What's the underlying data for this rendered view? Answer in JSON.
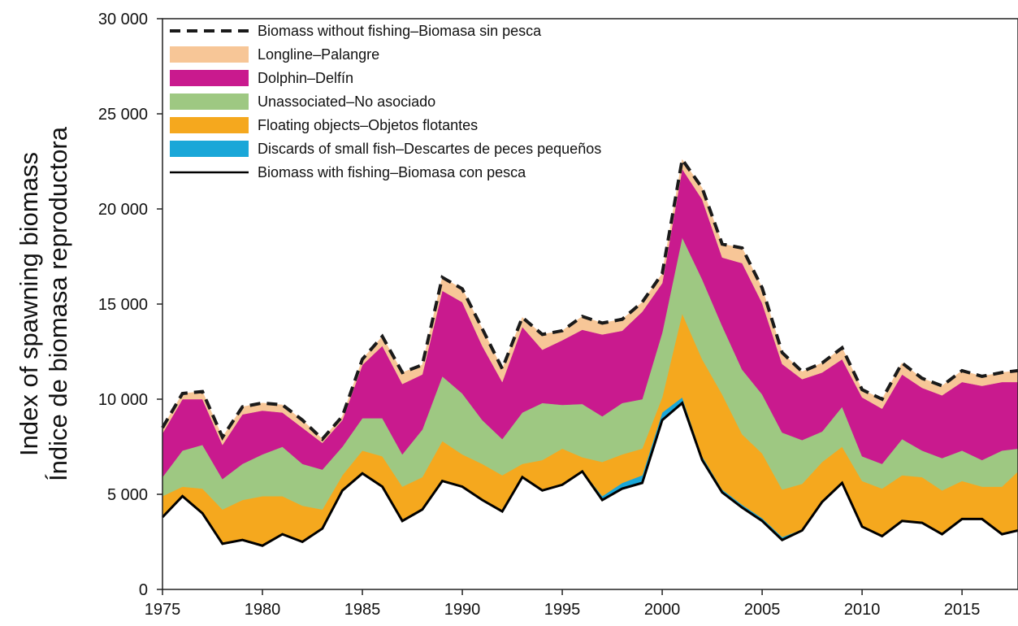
{
  "chart_data": {
    "type": "area",
    "title": "",
    "ylabel": [
      "Index of spawning biomass",
      "Índice de biomasa reproductora"
    ],
    "xlabel": "",
    "xlim": [
      1975,
      2017.8
    ],
    "ylim": [
      0,
      30000
    ],
    "xticks": [
      1975,
      1980,
      1985,
      1990,
      1995,
      2000,
      2005,
      2010,
      2015
    ],
    "yticks": [
      0,
      5000,
      10000,
      15000,
      20000,
      25000,
      30000
    ],
    "ytick_labels": [
      "0",
      "5 000",
      "10 000",
      "15 000",
      "20 000",
      "25 000",
      "30 000"
    ],
    "grid": false,
    "legend_position": "top-left",
    "x": [
      1975,
      1976,
      1977,
      1978,
      1979,
      1980,
      1981,
      1982,
      1983,
      1984,
      1985,
      1986,
      1987,
      1988,
      1989,
      1990,
      1991,
      1992,
      1993,
      1994,
      1995,
      1996,
      1997,
      1998,
      1999,
      2000,
      2001,
      2002,
      2003,
      2004,
      2005,
      2006,
      2007,
      2008,
      2009,
      2010,
      2011,
      2012,
      2013,
      2014,
      2015,
      2016,
      2017,
      2017.8
    ],
    "with_fishing": [
      3800,
      4900,
      4000,
      2400,
      2600,
      2300,
      2900,
      2500,
      3200,
      5200,
      6100,
      5400,
      3600,
      4200,
      5700,
      5400,
      4700,
      4100,
      5900,
      5200,
      5500,
      6200,
      4700,
      5300,
      5600,
      8900,
      9800,
      6800,
      5100,
      4300,
      3600,
      2600,
      3100,
      4600,
      5600,
      3300,
      2800,
      3600,
      3500,
      2900,
      3700,
      3700,
      2900,
      3100
    ],
    "series": [
      {
        "name": "Discards of small fish–Descartes de peces pequeños",
        "color": "#1aa7d8",
        "values": [
          0,
          0,
          0,
          0,
          0,
          0,
          0,
          0,
          0,
          0,
          0,
          0,
          0,
          0,
          0,
          0,
          0,
          0,
          0,
          0,
          0,
          50,
          200,
          300,
          400,
          400,
          300,
          200,
          150,
          150,
          150,
          150,
          50,
          0,
          0,
          0,
          0,
          0,
          0,
          0,
          0,
          0,
          0,
          0
        ]
      },
      {
        "name": "Floating objects–Objetos flotantes",
        "color": "#f5a81e",
        "values": [
          1100,
          500,
          1300,
          1800,
          2100,
          2600,
          2000,
          1900,
          1000,
          800,
          1200,
          1600,
          1800,
          1700,
          2100,
          1700,
          1900,
          1900,
          700,
          1600,
          1900,
          700,
          1800,
          1500,
          1400,
          800,
          4400,
          5100,
          5000,
          3700,
          3400,
          2500,
          2400,
          2100,
          1900,
          2400,
          2500,
          2400,
          2400,
          2300,
          2000,
          1700,
          2500,
          3100
        ]
      },
      {
        "name": "Unassociated–No asociado",
        "color": "#9ec882",
        "values": [
          1000,
          1900,
          2300,
          1600,
          1900,
          2200,
          2600,
          2200,
          2100,
          1500,
          1700,
          2000,
          1700,
          2500,
          3400,
          3200,
          2300,
          1900,
          2700,
          3000,
          2300,
          2800,
          2400,
          2700,
          2600,
          3400,
          4000,
          4200,
          3600,
          3400,
          3100,
          3000,
          2300,
          1600,
          2100,
          1300,
          1300,
          1900,
          1400,
          1700,
          1600,
          1400,
          1900,
          1200
        ]
      },
      {
        "name": "Dolphin–Delfín",
        "color": "#c91a8e",
        "values": [
          2300,
          2700,
          2400,
          1800,
          2600,
          2300,
          1800,
          1900,
          1400,
          1400,
          2800,
          3800,
          3700,
          2900,
          4500,
          4800,
          3900,
          3000,
          4500,
          2800,
          3400,
          3900,
          4300,
          3800,
          4600,
          2600,
          3600,
          4200,
          3600,
          5600,
          4800,
          3600,
          3200,
          3100,
          2500,
          3100,
          2900,
          3400,
          3300,
          3300,
          3600,
          3900,
          3600,
          3500
        ]
      },
      {
        "name": "Longline–Palangre",
        "color": "#f7c697",
        "values": [
          300,
          300,
          400,
          400,
          400,
          400,
          400,
          400,
          200,
          200,
          300,
          500,
          600,
          500,
          700,
          700,
          900,
          700,
          500,
          800,
          500,
          700,
          600,
          600,
          500,
          500,
          500,
          600,
          700,
          800,
          800,
          600,
          400,
          500,
          600,
          400,
          500,
          600,
          500,
          500,
          600,
          500,
          500,
          600
        ]
      }
    ],
    "legend": [
      {
        "label": "Biomass without fishing–Biomasa sin pesca",
        "style": "dashed"
      },
      {
        "label": "Longline–Palangre",
        "style": "fill",
        "color": "#f7c697"
      },
      {
        "label": "Dolphin–Delfín",
        "style": "fill",
        "color": "#c91a8e"
      },
      {
        "label": "Unassociated–No asociado",
        "style": "fill",
        "color": "#9ec882"
      },
      {
        "label": "Floating objects–Objetos flotantes",
        "style": "fill",
        "color": "#f5a81e"
      },
      {
        "label": "Discards of small fish–Descartes de peces pequeños",
        "style": "fill",
        "color": "#1aa7d8"
      },
      {
        "label": "Biomass with fishing–Biomasa con pesca",
        "style": "solid"
      }
    ]
  }
}
